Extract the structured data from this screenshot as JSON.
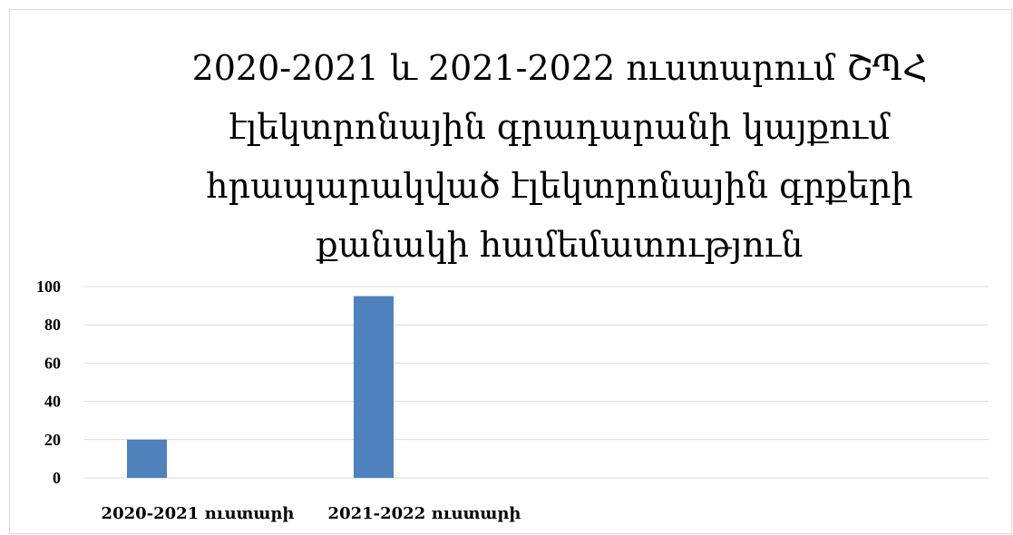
{
  "chart_data": {
    "type": "bar",
    "title": "2020-2021 և 2021-2022 ուստարում ՇՊՀ էլեկտրոնային գրադարանի կայքում հրապարակված էլեկտրոնային գրքերի քանակի համեմատություն",
    "title_lines": [
      "2020-2021 և 2021-2022 ուստարում ՇՊՀ",
      "էլեկտրոնային գրադարանի կայքում",
      "հրապարակված էլեկտրոնային գրքերի",
      "քանակի համեմատություն"
    ],
    "categories": [
      "2020-2021 ուստարի",
      "2021-2022 ուստարի"
    ],
    "series": [
      {
        "values": [
          20,
          95
        ],
        "color": "#4f81bd"
      }
    ],
    "ylim": [
      0,
      100
    ],
    "yticks": [
      0,
      20,
      40,
      60,
      80,
      100
    ],
    "grid": true,
    "legend": "none",
    "xlabel": "",
    "ylabel": ""
  }
}
